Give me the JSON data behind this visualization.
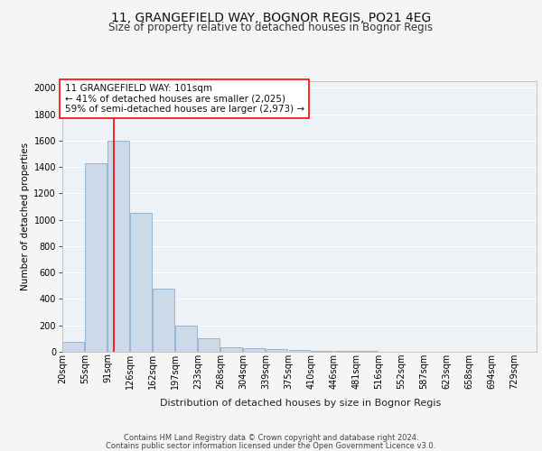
{
  "title1": "11, GRANGEFIELD WAY, BOGNOR REGIS, PO21 4EG",
  "title2": "Size of property relative to detached houses in Bognor Regis",
  "xlabel": "Distribution of detached houses by size in Bognor Regis",
  "ylabel": "Number of detached properties",
  "annotation_line1": "11 GRANGEFIELD WAY: 101sqm",
  "annotation_line2": "← 41% of detached houses are smaller (2,025)",
  "annotation_line3": "59% of semi-detached houses are larger (2,973) →",
  "footnote1": "Contains HM Land Registry data © Crown copyright and database right 2024.",
  "footnote2": "Contains public sector information licensed under the Open Government Licence v3.0.",
  "bar_color": "#ccd9e8",
  "bar_edge_color": "#8aaece",
  "red_line_x": 101,
  "categories": [
    "20sqm",
    "55sqm",
    "91sqm",
    "126sqm",
    "162sqm",
    "197sqm",
    "233sqm",
    "268sqm",
    "304sqm",
    "339sqm",
    "375sqm",
    "410sqm",
    "446sqm",
    "481sqm",
    "516sqm",
    "552sqm",
    "587sqm",
    "623sqm",
    "658sqm",
    "694sqm",
    "729sqm"
  ],
  "bin_edges": [
    20,
    55,
    91,
    126,
    162,
    197,
    233,
    268,
    304,
    339,
    375,
    410,
    446,
    481,
    516,
    552,
    587,
    623,
    658,
    694,
    729
  ],
  "bin_width": 35,
  "values": [
    75,
    1425,
    1600,
    1050,
    480,
    200,
    100,
    35,
    25,
    20,
    15,
    8,
    5,
    4,
    3,
    2,
    2,
    1,
    1,
    1,
    0
  ],
  "ylim": [
    0,
    2050
  ],
  "yticks": [
    0,
    200,
    400,
    600,
    800,
    1000,
    1200,
    1400,
    1600,
    1800,
    2000
  ],
  "bg_color": "#edf2f7",
  "grid_color": "#ffffff",
  "fig_bg": "#f5f5f5",
  "title1_fontsize": 10,
  "title2_fontsize": 8.5,
  "xlabel_fontsize": 8,
  "ylabel_fontsize": 7.5,
  "tick_fontsize": 7,
  "annot_fontsize": 7.5,
  "footnote_fontsize": 6
}
